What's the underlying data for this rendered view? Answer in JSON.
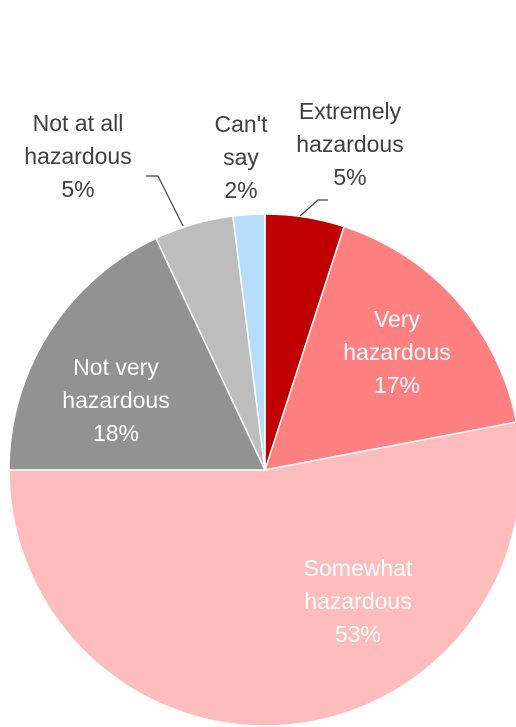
{
  "chart_data": {
    "type": "pie",
    "title": "",
    "start_angle_deg": 0,
    "direction": "clockwise",
    "slices": [
      {
        "name_lines": [
          "Extremely",
          "hazardous"
        ],
        "value": 5,
        "percent_label": "5%",
        "color": "#C00000"
      },
      {
        "name_lines": [
          "Very",
          "hazardous"
        ],
        "value": 17,
        "percent_label": "17%",
        "color": "#FF8080"
      },
      {
        "name_lines": [
          "Somewhat",
          "hazardous"
        ],
        "value": 53,
        "percent_label": "53%",
        "color": "#FFBCBC"
      },
      {
        "name_lines": [
          "Not very",
          "hazardous"
        ],
        "value": 18,
        "percent_label": "18%",
        "color": "#929292"
      },
      {
        "name_lines": [
          "Not at all",
          "hazardous"
        ],
        "value": 5,
        "percent_label": "5%",
        "color": "#BDBDBD"
      },
      {
        "name_lines": [
          "Can't",
          "say"
        ],
        "value": 2,
        "percent_label": "2%",
        "color": "#B7DCFA"
      }
    ],
    "label_color_inside": "#ffffff",
    "label_color_outside": "#404040",
    "legend": "none"
  }
}
